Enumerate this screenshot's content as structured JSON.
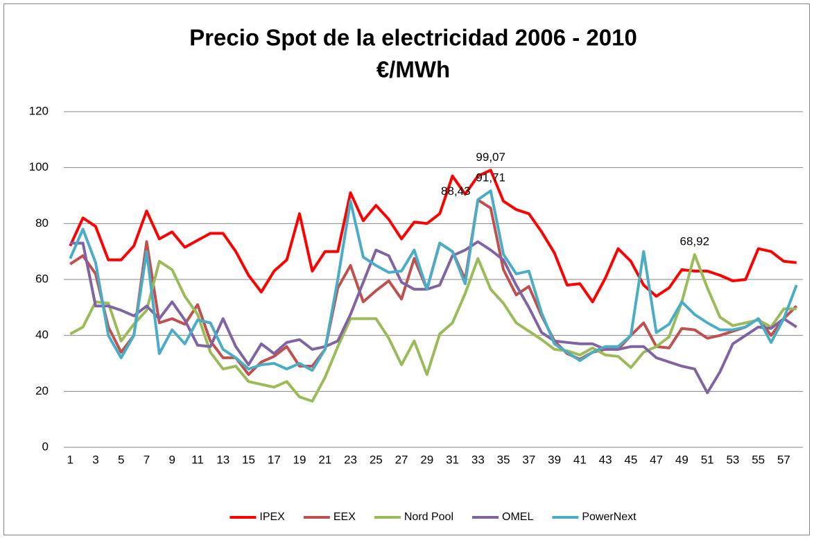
{
  "chart_data": {
    "type": "line",
    "title": "Precio Spot de la electricidad 2006 - 2010",
    "subtitle": "€/MWh",
    "categories": [
      1,
      null,
      3,
      null,
      5,
      null,
      7,
      null,
      9,
      null,
      11,
      null,
      13,
      null,
      15,
      null,
      17,
      null,
      19,
      null,
      21,
      null,
      23,
      null,
      25,
      null,
      27,
      null,
      29,
      null,
      31,
      null,
      33,
      null,
      35,
      null,
      37,
      null,
      39,
      null,
      41,
      null,
      43,
      null,
      45,
      null,
      47,
      null,
      49,
      null,
      51,
      null,
      53,
      null,
      55,
      null,
      57,
      null
    ],
    "ylim": [
      0,
      120
    ],
    "yticks": [
      0,
      20,
      40,
      60,
      80,
      100,
      120
    ],
    "grid": true,
    "legend": "bottom",
    "series": [
      {
        "name": "IPEX",
        "color": "#ff0000",
        "values": [
          72,
          82,
          79,
          67,
          67,
          72,
          84.5,
          74.5,
          77,
          71.5,
          74,
          76.5,
          76.5,
          70,
          61.5,
          55.5,
          63,
          67,
          83.5,
          63,
          70,
          70,
          91,
          81,
          86.5,
          81.5,
          74.5,
          80.5,
          80,
          83.5,
          97,
          90.5,
          97,
          99.07,
          88,
          85,
          83.5,
          77,
          69.5,
          58,
          58.5,
          52,
          60.5,
          71,
          66.5,
          58,
          54,
          57,
          63.5,
          63,
          63,
          61.5,
          59.5,
          60,
          71,
          70,
          66.5,
          66
        ],
        "value_labels": [
          null,
          null,
          null,
          null,
          null,
          null,
          null,
          null,
          null,
          null,
          null,
          null,
          null,
          null,
          null,
          null,
          null,
          null,
          null,
          null,
          null,
          null,
          null,
          null,
          null,
          null,
          null,
          null,
          null,
          null,
          null,
          null,
          null,
          "99,07",
          null,
          null,
          null,
          null,
          null,
          null,
          null,
          null,
          null,
          null,
          null,
          null,
          null,
          null,
          null,
          null,
          null,
          null,
          null,
          null,
          null,
          null,
          null,
          null
        ]
      },
      {
        "name": "EEX",
        "color": "#c0504d",
        "values": [
          65.5,
          68.5,
          62,
          43,
          34,
          40,
          73.5,
          44.5,
          46,
          44,
          51,
          38,
          32,
          32,
          26,
          30.5,
          32.5,
          36,
          29,
          29,
          35,
          57,
          65,
          52,
          56,
          59.5,
          53,
          67.5,
          56.5,
          73,
          70,
          60,
          88.43,
          85.5,
          63.5,
          54.5,
          57.5,
          47,
          38,
          33.5,
          31.5,
          34,
          35,
          35,
          40,
          44.5,
          36,
          35.5,
          42.5,
          42,
          39,
          40,
          41.5,
          43,
          46,
          40,
          46,
          50.5
        ],
        "value_labels": [
          null,
          null,
          null,
          null,
          null,
          null,
          null,
          null,
          null,
          null,
          null,
          null,
          null,
          null,
          null,
          null,
          null,
          null,
          null,
          null,
          null,
          null,
          null,
          null,
          null,
          null,
          null,
          null,
          null,
          null,
          null,
          null,
          "88,43",
          null,
          null,
          null,
          null,
          null,
          null,
          null,
          null,
          null,
          null,
          null,
          null,
          null,
          null,
          null,
          null,
          null,
          null,
          null,
          null,
          null,
          null,
          null,
          null,
          null
        ]
      },
      {
        "name": "Nord Pool",
        "color": "#9bbb59",
        "values": [
          40.5,
          43,
          52,
          51.5,
          38,
          44,
          49,
          66.5,
          63.5,
          54,
          47.5,
          34,
          28,
          29,
          23.5,
          22.5,
          21.5,
          23.5,
          18,
          16.5,
          25,
          36,
          46,
          46,
          46,
          39,
          29.5,
          38,
          26,
          40.5,
          44.5,
          55,
          67.5,
          56.5,
          51.5,
          44.5,
          41.5,
          38.5,
          35,
          34.5,
          33,
          35.5,
          33,
          32.5,
          28.5,
          34,
          36,
          39.5,
          52,
          68.92,
          57,
          46.5,
          43.5,
          44.5,
          45.5,
          43,
          49.5,
          49.5
        ],
        "value_labels": [
          null,
          null,
          null,
          null,
          null,
          null,
          null,
          null,
          null,
          null,
          null,
          null,
          null,
          null,
          null,
          null,
          null,
          null,
          null,
          null,
          null,
          null,
          null,
          null,
          null,
          null,
          null,
          null,
          null,
          null,
          null,
          null,
          null,
          null,
          null,
          null,
          null,
          null,
          null,
          null,
          null,
          null,
          null,
          null,
          null,
          null,
          null,
          null,
          null,
          "68,92",
          null,
          null,
          null,
          null,
          null,
          null,
          null,
          null
        ]
      },
      {
        "name": "OMEL",
        "color": "#8064a2",
        "values": [
          73,
          73,
          50.5,
          50.5,
          49,
          47,
          50.5,
          46,
          52,
          45.5,
          36.5,
          36,
          46,
          36,
          29.5,
          37,
          33.5,
          37.5,
          38.5,
          35,
          36,
          38,
          47.5,
          59,
          70.5,
          68.5,
          59,
          56.5,
          56.5,
          58,
          68.5,
          70.5,
          73.5,
          70.5,
          67,
          58,
          50,
          41,
          38,
          37.5,
          37,
          37,
          35,
          35,
          36,
          36,
          32,
          30.5,
          29,
          28,
          19.5,
          27,
          37,
          40,
          43,
          42.5,
          46,
          43
        ]
      },
      {
        "name": "PowerNext",
        "color": "#4bacc6",
        "values": [
          67.5,
          78,
          66,
          40,
          32,
          40,
          70,
          33.5,
          42,
          37,
          45.5,
          44.5,
          35,
          32,
          28,
          29.5,
          30,
          28,
          30,
          27.5,
          35,
          60,
          88,
          68,
          65,
          62.5,
          63,
          70.5,
          56.5,
          73,
          70,
          58.5,
          88.5,
          91.71,
          69,
          62,
          63,
          48,
          37,
          34,
          31,
          34,
          36,
          36,
          40,
          70,
          41,
          44,
          52,
          47.5,
          44.5,
          42,
          42,
          43,
          46,
          37.5,
          46,
          58
        ],
        "value_labels": [
          null,
          null,
          null,
          null,
          null,
          null,
          null,
          null,
          null,
          null,
          null,
          null,
          null,
          null,
          null,
          null,
          null,
          null,
          null,
          null,
          null,
          null,
          null,
          null,
          null,
          null,
          null,
          null,
          null,
          null,
          null,
          null,
          null,
          "91,71",
          null,
          null,
          null,
          null,
          null,
          null,
          null,
          null,
          null,
          null,
          null,
          null,
          null,
          null,
          null,
          null,
          null,
          null,
          null,
          null,
          null,
          null,
          null,
          null
        ]
      }
    ]
  }
}
